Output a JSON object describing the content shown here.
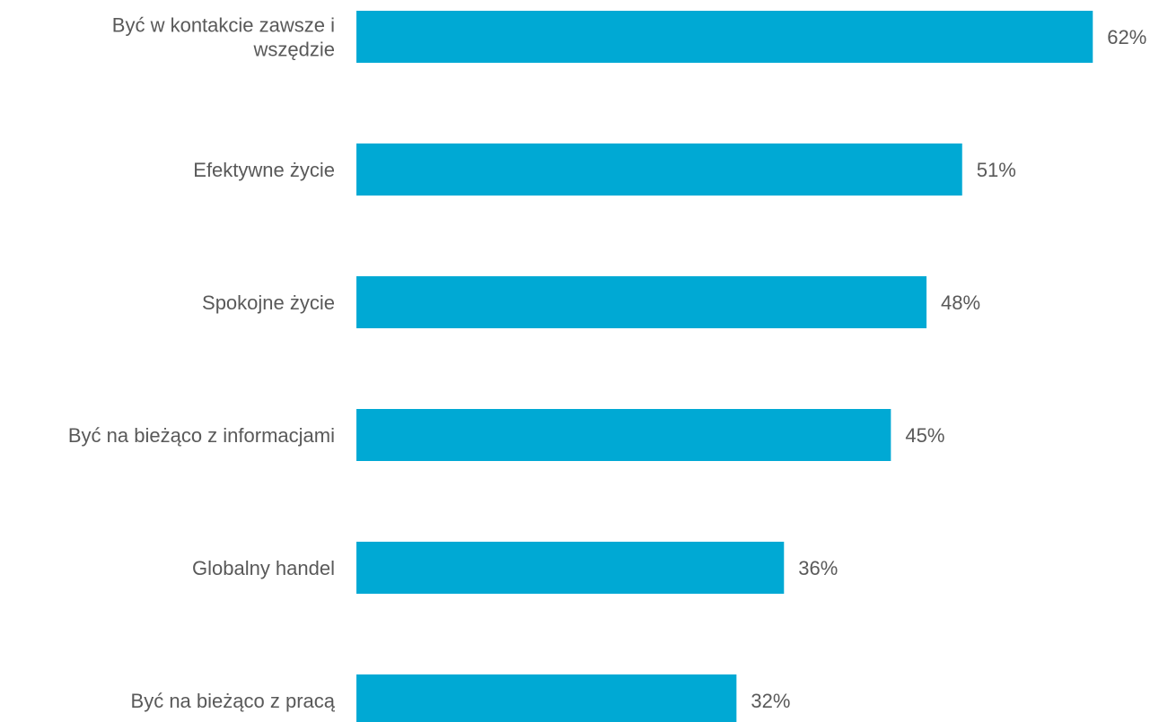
{
  "chart_data": {
    "type": "bar",
    "orientation": "horizontal",
    "title": "",
    "xlabel": "",
    "ylabel": "",
    "categories": [
      [
        "Być w kontakcie zawsze i",
        "wszędzie"
      ],
      [
        "Efektywne życie"
      ],
      [
        "Spokojne życie"
      ],
      [
        "Być na bieżąco z informacjami"
      ],
      [
        "Globalny handel"
      ],
      [
        "Być na bieżąco z pracą"
      ]
    ],
    "values": [
      62,
      51,
      48,
      45,
      36,
      32
    ],
    "value_labels": [
      "62%",
      "51%",
      "48%",
      "45%",
      "36%",
      "32%"
    ],
    "xlim": [
      0,
      100
    ],
    "grid": false,
    "legend": "none",
    "bar_color": "#00A9D4",
    "text_color": "#595959"
  }
}
